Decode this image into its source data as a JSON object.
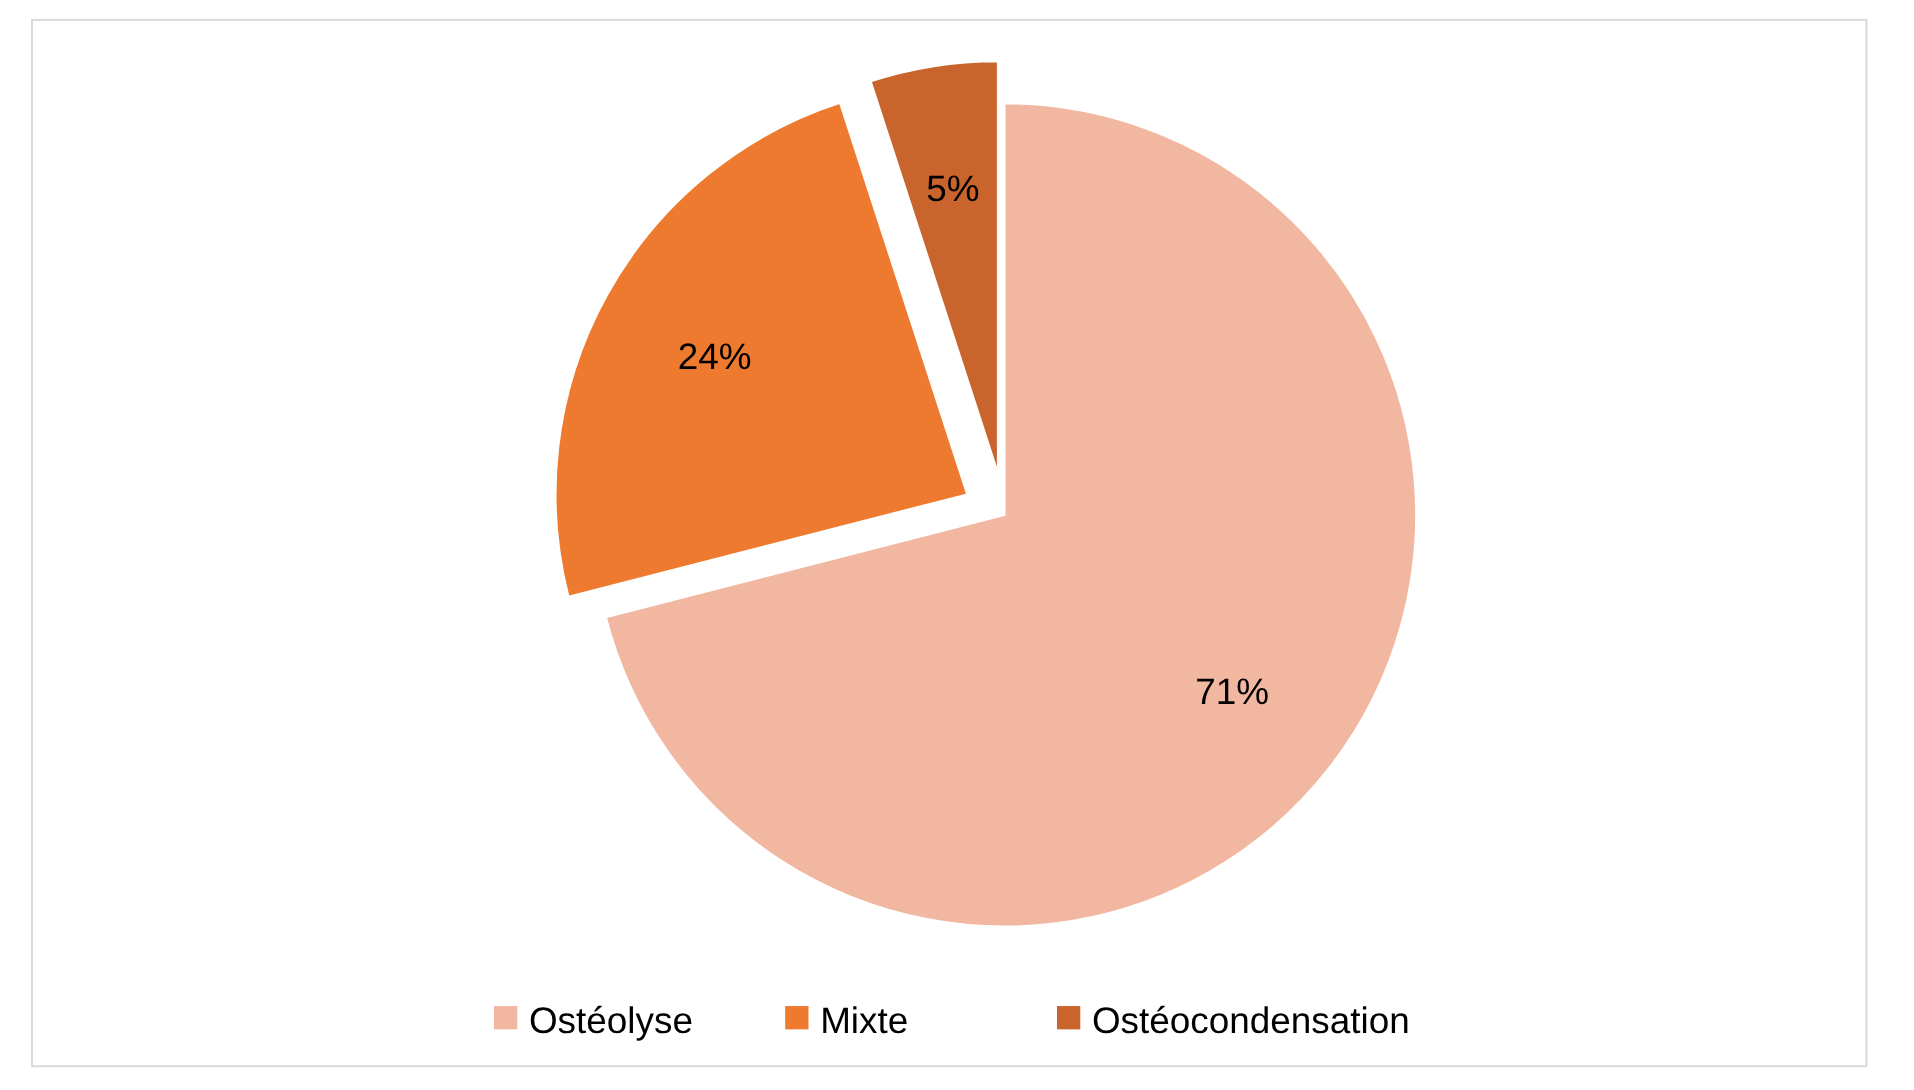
{
  "chart_data": {
    "type": "pie",
    "categories": [
      "Ostéolyse",
      "Mixte",
      "Ostéocondensation"
    ],
    "values": [
      71,
      24,
      5
    ],
    "colors": [
      "#f2b7a0",
      "#ed7a2e",
      "#c8642c"
    ],
    "value_labels": [
      "71%",
      "24%",
      "5%"
    ],
    "legend": "bottom"
  }
}
